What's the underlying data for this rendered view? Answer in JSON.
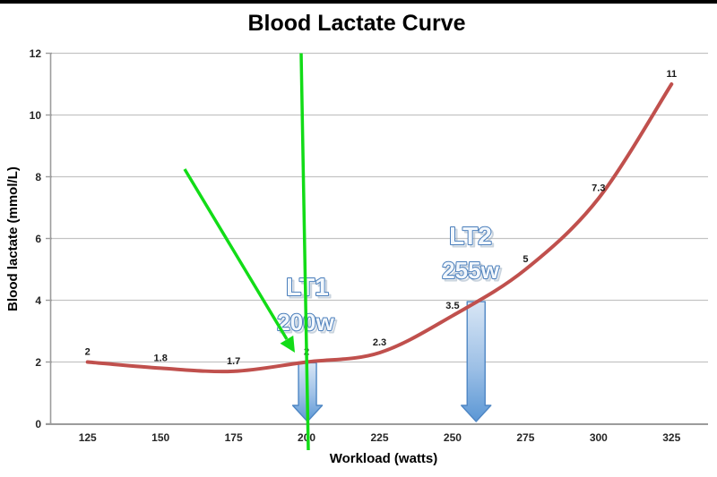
{
  "chart_data": {
    "type": "line",
    "title": "Blood Lactate Curve",
    "xlabel": "Workload (watts)",
    "ylabel": "Blood lactate (mmol/L)",
    "x": [
      125,
      150,
      175,
      200,
      225,
      250,
      275,
      300,
      325
    ],
    "series": [
      {
        "name": "Blood lactate",
        "values": [
          2,
          1.8,
          1.7,
          2,
          2.3,
          3.5,
          5,
          7.3,
          11
        ],
        "color": "#C0504D"
      }
    ],
    "data_labels": [
      "2",
      "1.8",
      "1.7",
      "2",
      "2.3",
      "3.5",
      "5",
      "7.3",
      "11"
    ],
    "x_tick_labels": [
      "125",
      "150",
      "175",
      "200",
      "225",
      "250",
      "275",
      "300",
      "325"
    ],
    "y_tick_labels": [
      "0",
      "2",
      "4",
      "6",
      "8",
      "10",
      "12"
    ],
    "xlim": [
      112.5,
      337.5
    ],
    "ylim": [
      0,
      12
    ],
    "grid": true,
    "legend": "none",
    "annotations": [
      {
        "label": "LT1",
        "sublabel": "200w",
        "watts": 200,
        "type": "down-arrow"
      },
      {
        "label": "LT2",
        "sublabel": "255w",
        "watts": 255,
        "type": "down-arrow"
      },
      {
        "type": "vertical-line",
        "watts": 200,
        "color": "#12DC17"
      },
      {
        "type": "pointer-arrow",
        "points_to_watts": 200,
        "color": "#12DC17"
      }
    ]
  },
  "colors": {
    "curve": "#C0504D",
    "green": "#12DC17",
    "arrow_fill_top": "#D8E6F5",
    "arrow_fill_bottom": "#5B97D5",
    "arrow_stroke": "#4E86C4",
    "lt_fill": "#F2F7FC",
    "lt_stroke": "#4A7EBB",
    "lt_shadow": "#96AABE",
    "gridline": "#C3C3C3",
    "axis": "#9C9C9C",
    "top_bar": "#000000"
  }
}
